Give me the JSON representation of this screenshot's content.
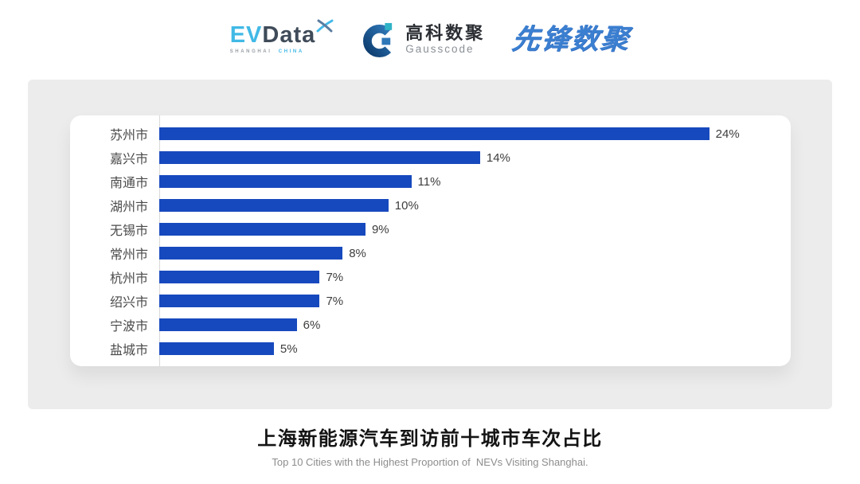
{
  "logos": {
    "evdata": {
      "ev": "EV",
      "data": "Data",
      "sub_left": "SHANGHAI",
      "sub_right": "CHINA"
    },
    "gausscode": {
      "cn": "高科数聚",
      "en": "Gausscode"
    },
    "xianfeng": {
      "text": "先锋数聚"
    }
  },
  "chart_data": {
    "type": "bar",
    "orientation": "horizontal",
    "categories": [
      "苏州市",
      "嘉兴市",
      "南通市",
      "湖州市",
      "无锡市",
      "常州市",
      "杭州市",
      "绍兴市",
      "宁波市",
      "盐城市"
    ],
    "values": [
      24,
      14,
      11,
      10,
      9,
      8,
      7,
      7,
      6,
      5
    ],
    "value_labels": [
      "24%",
      "14%",
      "11%",
      "10%",
      "9%",
      "8%",
      "7%",
      "7%",
      "6%",
      "5%"
    ],
    "xlim": [
      0,
      27
    ],
    "grid": false,
    "legend": "none",
    "bar_color": "#1749BE",
    "title": "上海新能源汽车到访前十城市车次占比",
    "subtitle": "Top 10 Cities with the Highest Proportion of  NEVs Visiting Shanghai."
  },
  "colors": {
    "bar_blue": "#1749BE",
    "panel_grey": "#ECECEC",
    "evdata_blue": "#41B9E6",
    "evdata_dark": "#3F4B59",
    "xianfeng_blue": "#3B7FD0",
    "axis_grey": "#D9D9D9"
  }
}
